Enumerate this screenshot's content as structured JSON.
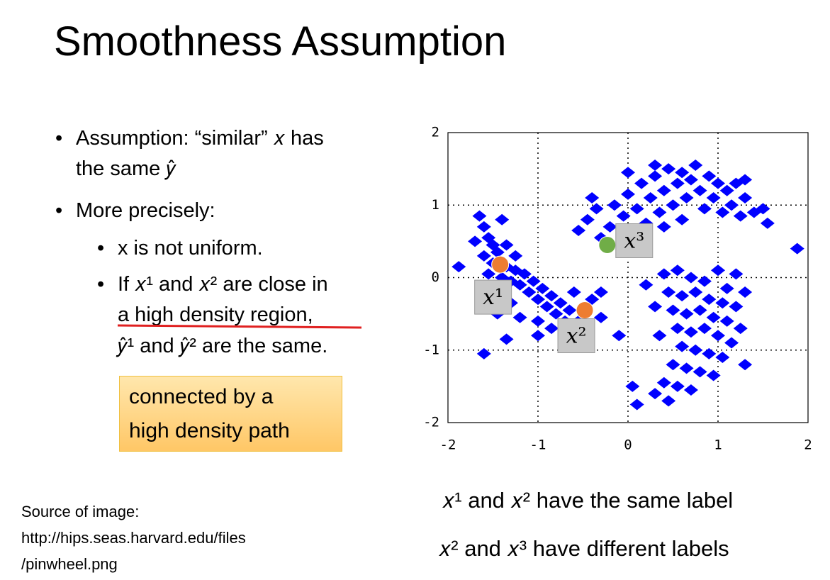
{
  "slide": {
    "title": "Smoothness Assumption",
    "bullets": [
      {
        "lines": [
          "Assumption: “similar” 𝑥 has",
          "the same 𝑦̂"
        ]
      },
      {
        "lines": [
          "More precisely:"
        ]
      }
    ],
    "sub_bullets": [
      {
        "lines": [
          "x is not uniform."
        ]
      },
      {
        "lines": [
          "If 𝑥¹ and 𝑥² are close in",
          "a high density region,",
          "𝑦̂¹ and 𝑦̂² are the same."
        ]
      }
    ],
    "note_box": [
      "connected by a",
      "high density path"
    ],
    "source": [
      "Source of image:",
      "http://hips.seas.harvard.edu/files",
      "/pinwheel.png"
    ],
    "captions": [
      "𝑥¹ and 𝑥² have the same label",
      "𝑥² and 𝑥³ have different labels"
    ]
  },
  "chart_data": {
    "type": "scatter",
    "xlim": [
      -2,
      2
    ],
    "ylim": [
      -2,
      2
    ],
    "xticks": [
      -2,
      -1,
      0,
      1,
      2
    ],
    "yticks": [
      -2,
      -1,
      0,
      1,
      2
    ],
    "grid": true,
    "series": [
      {
        "color": "#0000ff",
        "x": [
          -1.6,
          -1.55,
          -1.5,
          -1.45,
          -1.5,
          -1.55,
          -1.4,
          -1.35,
          -1.3,
          -1.25,
          -1.2,
          -1.15,
          -1.1,
          -1.05,
          -1.0,
          -0.95,
          -0.9,
          -0.85,
          -0.8,
          -0.75,
          -0.7,
          -0.65,
          -0.6,
          -0.55,
          -0.5,
          -0.45,
          -0.55,
          -0.7,
          -1.3,
          -1.5,
          -1.45,
          -1.2,
          -1.0,
          -1.0,
          -0.85,
          -1.35,
          -1.25,
          -1.6,
          -1.7,
          -1.65,
          -1.4,
          -0.4,
          -0.3,
          -0.3,
          -0.6,
          -0.55,
          -0.45,
          -0.35,
          -0.3,
          -0.2,
          -0.15,
          -0.05,
          0.0,
          0.05,
          0.1,
          0.15,
          0.2,
          0.25,
          0.3,
          0.35,
          0.4,
          0.45,
          0.5,
          0.55,
          0.6,
          0.65,
          0.7,
          0.75,
          0.8,
          0.85,
          0.9,
          0.95,
          1.0,
          1.05,
          1.1,
          1.15,
          1.2,
          1.25,
          1.3,
          1.4,
          1.5,
          1.55,
          0.3,
          0.0,
          -0.4,
          0.6,
          0.4,
          -0.1,
          1.3,
          0.4,
          0.55,
          0.7,
          0.85,
          1.0,
          1.1,
          0.45,
          0.6,
          0.75,
          0.9,
          1.05,
          1.2,
          0.5,
          0.65,
          0.8,
          0.95,
          1.1,
          1.25,
          0.55,
          0.7,
          0.85,
          1.0,
          1.15,
          0.6,
          0.75,
          0.9,
          1.05,
          0.5,
          0.65,
          0.8,
          0.95,
          0.4,
          0.55,
          0.7,
          0.3,
          0.45,
          0.1,
          0.3,
          0.35,
          1.3,
          1.2,
          0.2,
          1.88,
          -1.88,
          -1.6,
          -1.35,
          1.3,
          0.05,
          -0.1
        ],
        "values": [
          0.7,
          0.55,
          0.45,
          0.35,
          0.2,
          0.05,
          0.0,
          0.15,
          -0.05,
          0.1,
          -0.1,
          0.05,
          -0.2,
          -0.05,
          -0.3,
          -0.15,
          -0.4,
          -0.25,
          -0.5,
          -0.35,
          -0.6,
          -0.45,
          -0.75,
          -0.6,
          -0.85,
          -0.7,
          -0.95,
          -0.85,
          -0.35,
          -0.3,
          -0.5,
          -0.55,
          -0.6,
          -0.8,
          -0.7,
          0.45,
          0.3,
          0.3,
          0.5,
          0.85,
          0.8,
          -0.3,
          -0.55,
          -0.2,
          -0.2,
          0.65,
          0.8,
          0.95,
          0.55,
          0.7,
          1.0,
          0.85,
          1.15,
          0.6,
          0.95,
          1.3,
          0.75,
          1.1,
          1.4,
          0.9,
          1.2,
          1.5,
          1.0,
          1.3,
          1.45,
          1.1,
          1.35,
          1.55,
          1.2,
          0.95,
          1.4,
          1.1,
          1.3,
          0.9,
          1.2,
          1.0,
          1.3,
          0.85,
          1.1,
          0.9,
          0.95,
          0.75,
          1.55,
          1.45,
          1.1,
          0.8,
          0.7,
          0.45,
          1.35,
          0.05,
          0.1,
          0.0,
          -0.05,
          0.1,
          -0.15,
          -0.2,
          -0.25,
          -0.2,
          -0.3,
          -0.35,
          -0.4,
          -0.45,
          -0.5,
          -0.45,
          -0.55,
          -0.6,
          -0.7,
          -0.7,
          -0.75,
          -0.7,
          -0.8,
          -0.9,
          -0.95,
          -1.0,
          -1.05,
          -1.1,
          -1.2,
          -1.25,
          -1.3,
          -1.35,
          -1.45,
          -1.5,
          -1.55,
          -1.6,
          -1.7,
          -1.75,
          -0.4,
          -0.8,
          -0.2,
          0.05,
          -0.1,
          0.4,
          0.15,
          -1.05,
          -0.85,
          -1.2,
          -1.5,
          -0.8
        ]
      },
      {
        "color": "#ed7d31",
        "x": [
          -1.42,
          -0.48
        ],
        "values": [
          0.18,
          -0.45
        ],
        "labels": [
          "𝑥¹",
          "𝑥²"
        ]
      },
      {
        "color": "#70ad47",
        "x": [
          -0.23
        ],
        "values": [
          0.45
        ],
        "labels": [
          "𝑥³"
        ]
      }
    ]
  }
}
